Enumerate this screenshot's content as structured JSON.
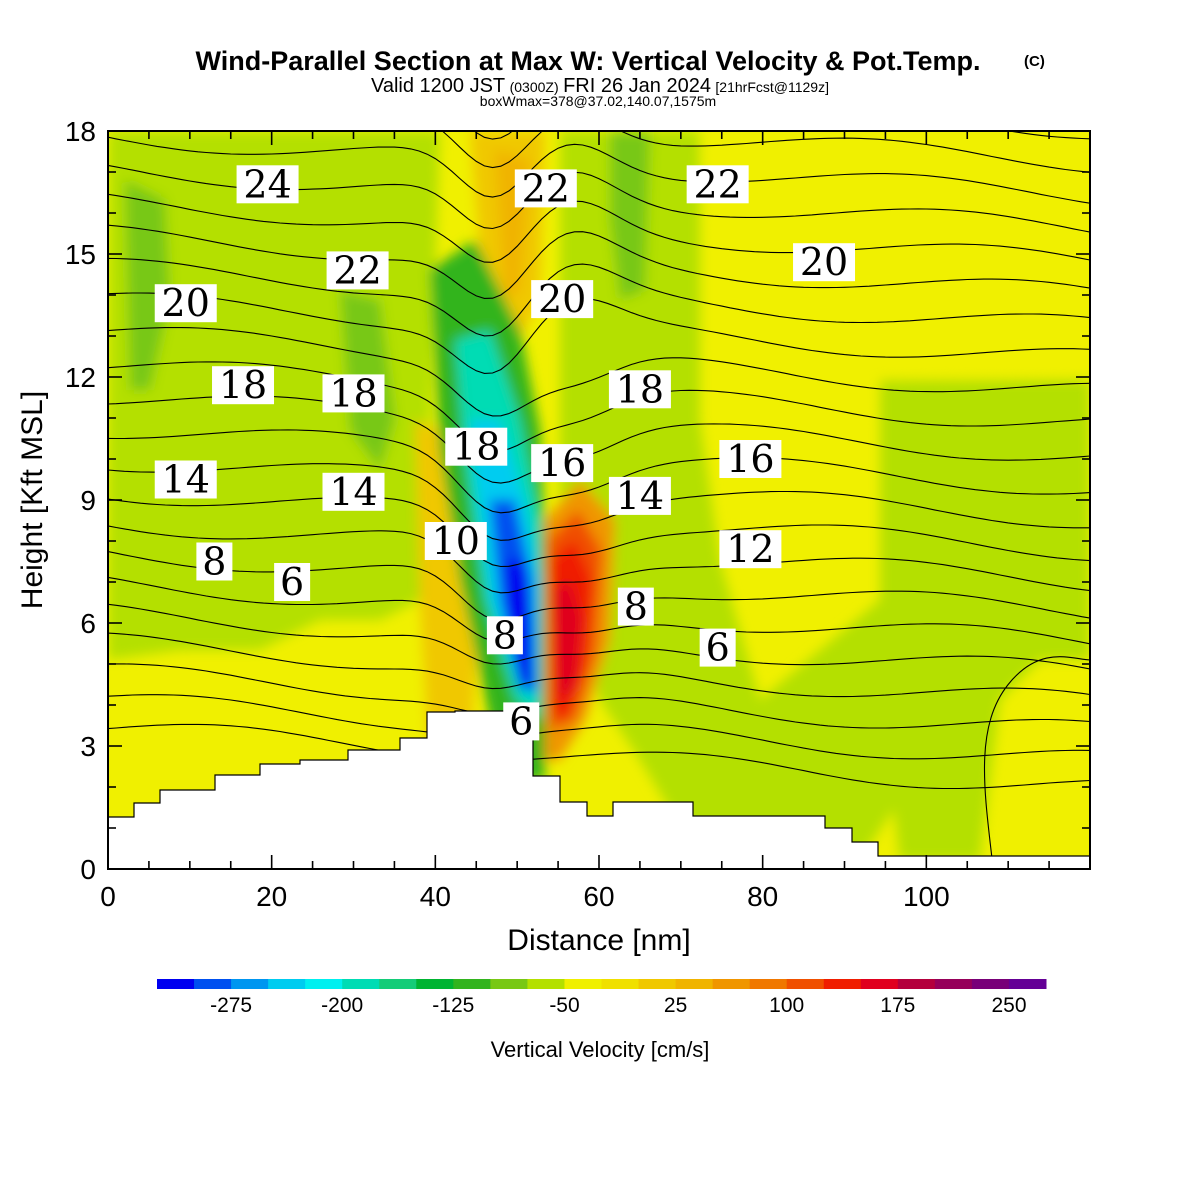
{
  "header": {
    "title": "Wind-Parallel Section at Max W: Vertical Velocity & Pot.Temp.",
    "copyright": "(C)",
    "valid_prefix": "Valid 1200 JST",
    "valid_zulu": "(0300Z)",
    "valid_date": "FRI 26 Jan 2024",
    "forecast": "[21hrFcst@1129z]",
    "boxinfo": "boxWmax=378@37.02,140.07,1575m"
  },
  "chart_data": {
    "type": "heatmap",
    "xlabel": "Distance [nm]",
    "ylabel": "Height [Kft MSL]",
    "xlim": [
      0,
      120
    ],
    "ylim": [
      0,
      18
    ],
    "xticks": [
      0,
      20,
      40,
      60,
      80,
      100
    ],
    "yticks": [
      0,
      3,
      6,
      9,
      12,
      15,
      18
    ],
    "colorbar": {
      "label": "Vertical Velocity [cm/s]",
      "range": [
        -300,
        300
      ],
      "step": 25,
      "tick_values": [
        -275,
        -200,
        -125,
        -50,
        25,
        100,
        175,
        250
      ],
      "tick_labels": [
        "-275",
        "-200",
        "-125",
        "-50",
        "25",
        "100",
        "175",
        "250"
      ],
      "colors": [
        "#0000f0",
        "#0050f0",
        "#0096f0",
        "#00ccf0",
        "#00f0f0",
        "#00dcb4",
        "#14cc78",
        "#00b432",
        "#32b41e",
        "#78c814",
        "#b4e000",
        "#f0f000",
        "#f0e000",
        "#f0c800",
        "#f0b400",
        "#f09600",
        "#f07800",
        "#f05000",
        "#f01e00",
        "#e0001e",
        "#b4003c",
        "#96005a",
        "#780078",
        "#640096"
      ]
    },
    "contour_labels": [
      {
        "text": "24",
        "x": 19.5,
        "y": 16.7
      },
      {
        "text": "22",
        "x": 30.5,
        "y": 14.6
      },
      {
        "text": "22",
        "x": 53.5,
        "y": 16.6
      },
      {
        "text": "22",
        "x": 74.5,
        "y": 16.7
      },
      {
        "text": "20",
        "x": 9.5,
        "y": 13.8
      },
      {
        "text": "20",
        "x": 55.5,
        "y": 13.9
      },
      {
        "text": "20",
        "x": 87.5,
        "y": 14.8
      },
      {
        "text": "18",
        "x": 16.5,
        "y": 11.8
      },
      {
        "text": "18",
        "x": 30.0,
        "y": 11.6
      },
      {
        "text": "18",
        "x": 45.0,
        "y": 10.3
      },
      {
        "text": "18",
        "x": 65.0,
        "y": 11.7
      },
      {
        "text": "16",
        "x": 55.5,
        "y": 9.9
      },
      {
        "text": "16",
        "x": 78.5,
        "y": 10.0
      },
      {
        "text": "14",
        "x": 9.5,
        "y": 9.5
      },
      {
        "text": "14",
        "x": 30.0,
        "y": 9.2
      },
      {
        "text": "14",
        "x": 65.0,
        "y": 9.1
      },
      {
        "text": "12",
        "x": 78.5,
        "y": 7.8
      },
      {
        "text": "10",
        "x": 42.5,
        "y": 8.0
      },
      {
        "text": "8",
        "x": 13.0,
        "y": 7.5
      },
      {
        "text": "8",
        "x": 48.5,
        "y": 5.7
      },
      {
        "text": "8",
        "x": 64.5,
        "y": 6.4
      },
      {
        "text": "6",
        "x": 22.5,
        "y": 7.0
      },
      {
        "text": "6",
        "x": 50.5,
        "y": 3.6
      },
      {
        "text": "6",
        "x": 74.5,
        "y": 5.4
      }
    ]
  }
}
